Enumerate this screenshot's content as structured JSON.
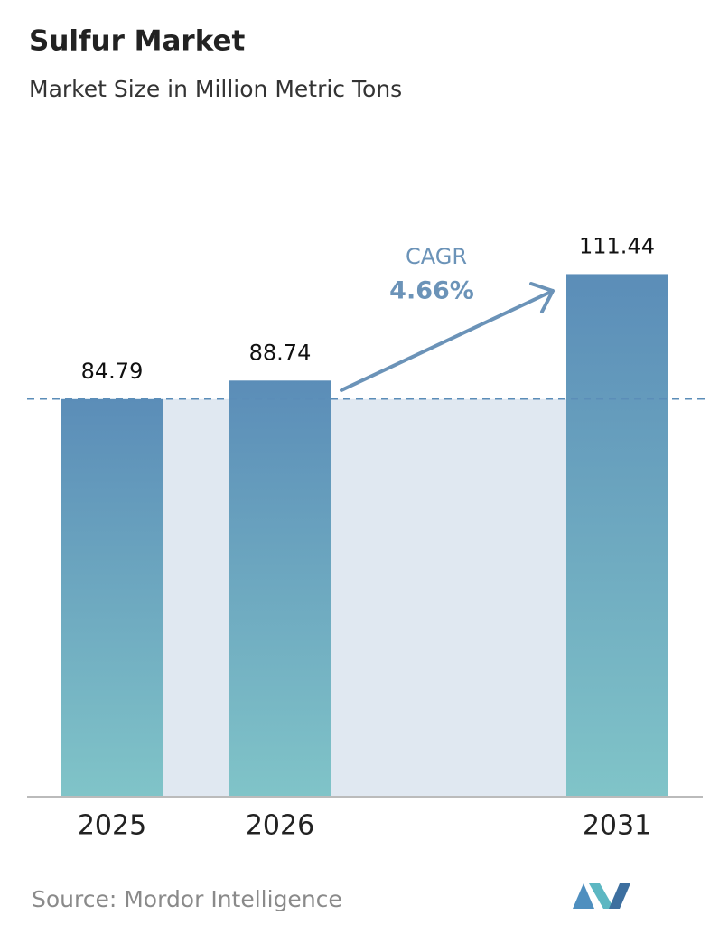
{
  "chart_data": {
    "type": "bar",
    "title": "Sulfur Market",
    "subtitle": "Market Size in Million Metric Tons",
    "categories": [
      "2025",
      "2026",
      "2031"
    ],
    "values": [
      84.79,
      88.74,
      111.44
    ],
    "ylim": [
      0,
      120
    ],
    "annotation": {
      "label": "CAGR",
      "value": "4.66%"
    },
    "source": "Source: Mordor Intelligence"
  }
}
